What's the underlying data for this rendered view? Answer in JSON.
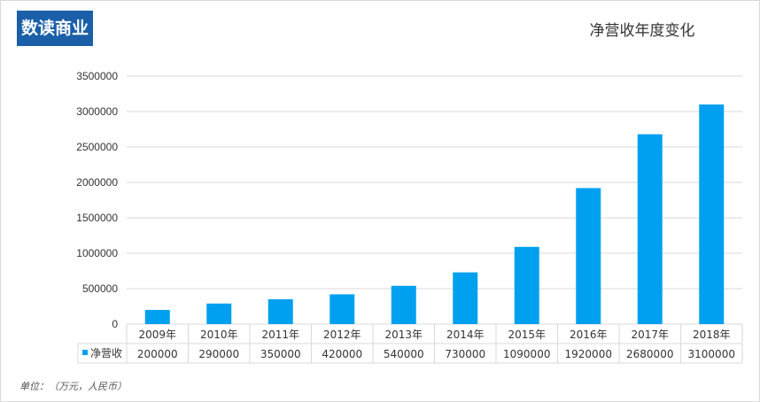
{
  "logo": {
    "text": "数读商业"
  },
  "chart_data": {
    "type": "bar",
    "title": "净营收年度变化",
    "categories": [
      "2009年",
      "2010年",
      "2011年",
      "2012年",
      "2013年",
      "2014年",
      "2015年",
      "2016年",
      "2017年",
      "2018年"
    ],
    "series": [
      {
        "name": "净营收",
        "values": [
          200000,
          290000,
          350000,
          420000,
          540000,
          730000,
          1090000,
          1920000,
          2680000,
          3100000
        ]
      }
    ],
    "ylim": [
      0,
      3500000
    ],
    "yticks": [
      0,
      500000,
      1000000,
      1500000,
      2000000,
      2500000,
      3000000,
      3500000
    ],
    "grid": true,
    "legend": "data-table",
    "colors": {
      "bar": "#00a0f0",
      "grid": "#d9d9d9"
    }
  },
  "footer": {
    "unit_note": "单位：（万元，人民币）"
  }
}
